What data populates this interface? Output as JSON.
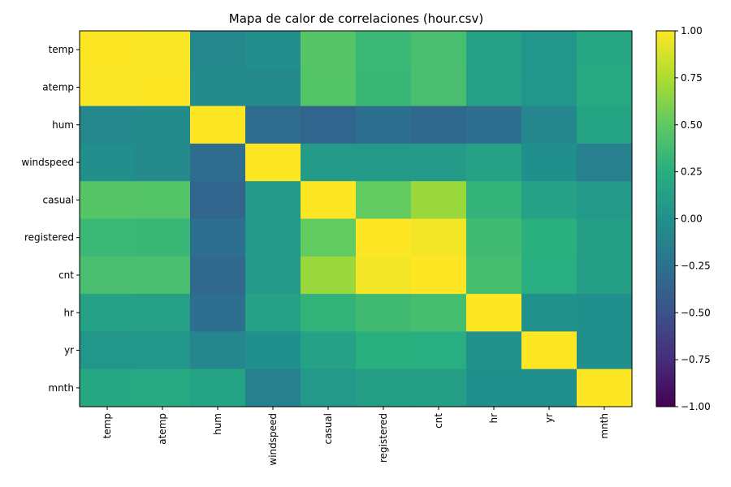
{
  "chart_data": {
    "type": "heatmap",
    "title": "Mapa de calor de correlaciones (hour.csv)",
    "xlabel": "",
    "ylabel": "",
    "x_categories": [
      "temp",
      "atemp",
      "hum",
      "windspeed",
      "casual",
      "registered",
      "cnt",
      "hr",
      "yr",
      "mnth"
    ],
    "y_categories": [
      "temp",
      "atemp",
      "hum",
      "windspeed",
      "casual",
      "registered",
      "cnt",
      "hr",
      "yr",
      "mnth"
    ],
    "values": [
      [
        1.0,
        0.99,
        -0.07,
        -0.02,
        0.46,
        0.34,
        0.4,
        0.14,
        0.04,
        0.2
      ],
      [
        0.99,
        1.0,
        -0.05,
        -0.06,
        0.45,
        0.33,
        0.4,
        0.13,
        0.04,
        0.21
      ],
      [
        -0.07,
        -0.05,
        1.0,
        -0.29,
        -0.35,
        -0.27,
        -0.32,
        -0.28,
        -0.08,
        0.16
      ],
      [
        -0.02,
        -0.06,
        -0.29,
        1.0,
        0.09,
        0.08,
        0.09,
        0.14,
        -0.01,
        -0.14
      ],
      [
        0.46,
        0.45,
        -0.35,
        0.09,
        1.0,
        0.51,
        0.69,
        0.3,
        0.14,
        0.07
      ],
      [
        0.34,
        0.33,
        -0.27,
        0.08,
        0.51,
        1.0,
        0.97,
        0.37,
        0.26,
        0.12
      ],
      [
        0.4,
        0.4,
        -0.32,
        0.09,
        0.69,
        0.97,
        1.0,
        0.39,
        0.25,
        0.12
      ],
      [
        0.14,
        0.13,
        -0.28,
        0.14,
        0.3,
        0.37,
        0.39,
        1.0,
        -0.0,
        -0.01
      ],
      [
        0.04,
        0.04,
        -0.08,
        -0.01,
        0.14,
        0.26,
        0.25,
        -0.0,
        1.0,
        -0.01
      ],
      [
        0.2,
        0.21,
        0.16,
        -0.14,
        0.07,
        0.12,
        0.12,
        -0.01,
        -0.01,
        1.0
      ]
    ],
    "colormap": "viridis",
    "vmin": -1.0,
    "vmax": 1.0,
    "colorbar_ticks": [
      "1.00",
      "0.75",
      "0.50",
      "0.25",
      "0.00",
      "−0.25",
      "−0.50",
      "−0.75",
      "−1.00"
    ],
    "colorbar_tick_values": [
      1.0,
      0.75,
      0.5,
      0.25,
      0.0,
      -0.25,
      -0.5,
      -0.75,
      -1.0
    ],
    "grid": false
  }
}
